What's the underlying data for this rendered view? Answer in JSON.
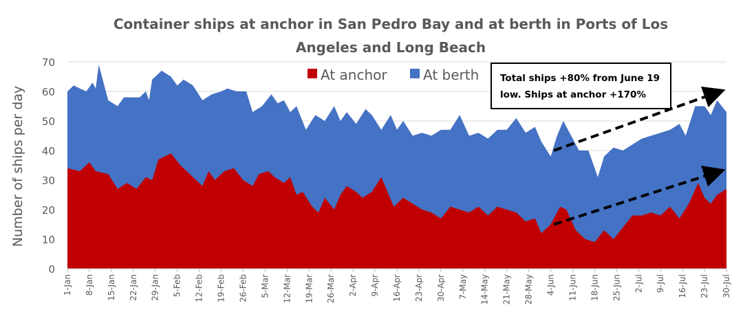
{
  "chart_data": {
    "type": "area",
    "stacked": true,
    "title_lines": [
      "Container ships at anchor in San Pedro Bay and at berth in Ports of Los",
      "Angeles and Long Beach"
    ],
    "xlabel": "",
    "ylabel": "Number of ships per day",
    "ylim": [
      0,
      70
    ],
    "yticks": [
      0,
      10,
      20,
      30,
      40,
      50,
      60,
      70
    ],
    "x_unit": "day index from 1-Jan (0) to 30-Jul (210)",
    "xlim": [
      0,
      210
    ],
    "xtick_labels": [
      "1-Jan",
      "8-Jan",
      "15-Jan",
      "22-Jan",
      "29-Jan",
      "5-Feb",
      "12-Feb",
      "19-Feb",
      "26-Feb",
      "5-Mar",
      "12-Mar",
      "19-Mar",
      "26-Mar",
      "2-Apr",
      "9-Apr",
      "16-Apr",
      "23-Apr",
      "30-Apr",
      "7-May",
      "14-May",
      "21-May",
      "28-May",
      "4-Jun",
      "11-Jun",
      "18-Jun",
      "25-Jun",
      "2-Jul",
      "9-Jul",
      "16-Jul",
      "23-Jul",
      "30-Jul"
    ],
    "grid": "horizontal",
    "legend_position": "top-center",
    "series": [
      {
        "name": "At anchor",
        "color": "#C00000",
        "points": [
          [
            0,
            34
          ],
          [
            4,
            33
          ],
          [
            7,
            36
          ],
          [
            9,
            33
          ],
          [
            13,
            32
          ],
          [
            16,
            27
          ],
          [
            19,
            29
          ],
          [
            22,
            27
          ],
          [
            25,
            31
          ],
          [
            27,
            30
          ],
          [
            29,
            37
          ],
          [
            31,
            38
          ],
          [
            33,
            39
          ],
          [
            36,
            35
          ],
          [
            39,
            32
          ],
          [
            41,
            30
          ],
          [
            43,
            28
          ],
          [
            45,
            33
          ],
          [
            47,
            30
          ],
          [
            50,
            33
          ],
          [
            53,
            34
          ],
          [
            56,
            30
          ],
          [
            59,
            28
          ],
          [
            61,
            32
          ],
          [
            64,
            33
          ],
          [
            66,
            31
          ],
          [
            69,
            29
          ],
          [
            71,
            31
          ],
          [
            73,
            25
          ],
          [
            75,
            26
          ],
          [
            78,
            21
          ],
          [
            80,
            19
          ],
          [
            82,
            24
          ],
          [
            85,
            20
          ],
          [
            87,
            25
          ],
          [
            89,
            28
          ],
          [
            92,
            26
          ],
          [
            94,
            24
          ],
          [
            97,
            26
          ],
          [
            100,
            31
          ],
          [
            102,
            26
          ],
          [
            104,
            21
          ],
          [
            107,
            24
          ],
          [
            110,
            22
          ],
          [
            113,
            20
          ],
          [
            116,
            19
          ],
          [
            119,
            17
          ],
          [
            122,
            21
          ],
          [
            125,
            20
          ],
          [
            128,
            19
          ],
          [
            131,
            21
          ],
          [
            134,
            18
          ],
          [
            137,
            21
          ],
          [
            140,
            20
          ],
          [
            143,
            19
          ],
          [
            146,
            16
          ],
          [
            149,
            17
          ],
          [
            151,
            12
          ],
          [
            154,
            15
          ],
          [
            157,
            21
          ],
          [
            159,
            20
          ],
          [
            162,
            13
          ],
          [
            165,
            10
          ],
          [
            168,
            9
          ],
          [
            171,
            13
          ],
          [
            174,
            10
          ],
          [
            177,
            14
          ],
          [
            180,
            18
          ],
          [
            183,
            18
          ],
          [
            186,
            19
          ],
          [
            189,
            18
          ],
          [
            192,
            21
          ],
          [
            195,
            17
          ],
          [
            198,
            22
          ],
          [
            201,
            29
          ],
          [
            203,
            24
          ],
          [
            205,
            22
          ],
          [
            207,
            25
          ],
          [
            210,
            27
          ]
        ]
      },
      {
        "name": "At berth",
        "color": "#4472C4",
        "stack_total_points": [
          [
            0,
            60
          ],
          [
            2,
            62
          ],
          [
            4,
            61
          ],
          [
            6,
            60
          ],
          [
            8,
            63
          ],
          [
            9,
            61
          ],
          [
            10,
            69
          ],
          [
            13,
            57
          ],
          [
            16,
            55
          ],
          [
            18,
            58
          ],
          [
            23,
            58
          ],
          [
            25,
            60
          ],
          [
            26,
            57
          ],
          [
            27,
            64
          ],
          [
            30,
            67
          ],
          [
            33,
            65
          ],
          [
            35,
            62
          ],
          [
            37,
            64
          ],
          [
            40,
            62
          ],
          [
            43,
            57
          ],
          [
            46,
            59
          ],
          [
            49,
            60
          ],
          [
            51,
            61
          ],
          [
            54,
            60
          ],
          [
            57,
            60
          ],
          [
            59,
            53
          ],
          [
            62,
            55
          ],
          [
            65,
            59
          ],
          [
            67,
            56
          ],
          [
            69,
            57
          ],
          [
            71,
            53
          ],
          [
            73,
            55
          ],
          [
            76,
            47
          ],
          [
            79,
            52
          ],
          [
            82,
            50
          ],
          [
            85,
            55
          ],
          [
            87,
            50
          ],
          [
            89,
            53
          ],
          [
            92,
            49
          ],
          [
            95,
            54
          ],
          [
            97,
            52
          ],
          [
            100,
            47
          ],
          [
            103,
            52
          ],
          [
            105,
            47
          ],
          [
            107,
            50
          ],
          [
            110,
            45
          ],
          [
            113,
            46
          ],
          [
            116,
            45
          ],
          [
            119,
            47
          ],
          [
            122,
            47
          ],
          [
            125,
            52
          ],
          [
            128,
            45
          ],
          [
            131,
            46
          ],
          [
            134,
            44
          ],
          [
            137,
            47
          ],
          [
            140,
            47
          ],
          [
            143,
            51
          ],
          [
            146,
            46
          ],
          [
            149,
            48
          ],
          [
            151,
            43
          ],
          [
            154,
            38
          ],
          [
            156,
            45
          ],
          [
            158,
            50
          ],
          [
            161,
            44
          ],
          [
            163,
            40
          ],
          [
            166,
            40
          ],
          [
            169,
            31
          ],
          [
            171,
            38
          ],
          [
            174,
            41
          ],
          [
            177,
            40
          ],
          [
            180,
            42
          ],
          [
            183,
            44
          ],
          [
            186,
            45
          ],
          [
            189,
            46
          ],
          [
            192,
            47
          ],
          [
            195,
            49
          ],
          [
            197,
            45
          ],
          [
            200,
            55
          ],
          [
            203,
            55
          ],
          [
            205,
            52
          ],
          [
            207,
            57
          ],
          [
            210,
            53
          ]
        ]
      }
    ],
    "annotation": {
      "lines": [
        "Total ships +80% from June 19",
        "low. Ships at anchor +170%"
      ]
    },
    "trend_arrows": [
      {
        "series": "total",
        "from": [
          155,
          40
        ],
        "to": [
          208,
          60
        ]
      },
      {
        "series": "anchor",
        "from": [
          155,
          15
        ],
        "to": [
          208,
          33
        ]
      }
    ]
  }
}
